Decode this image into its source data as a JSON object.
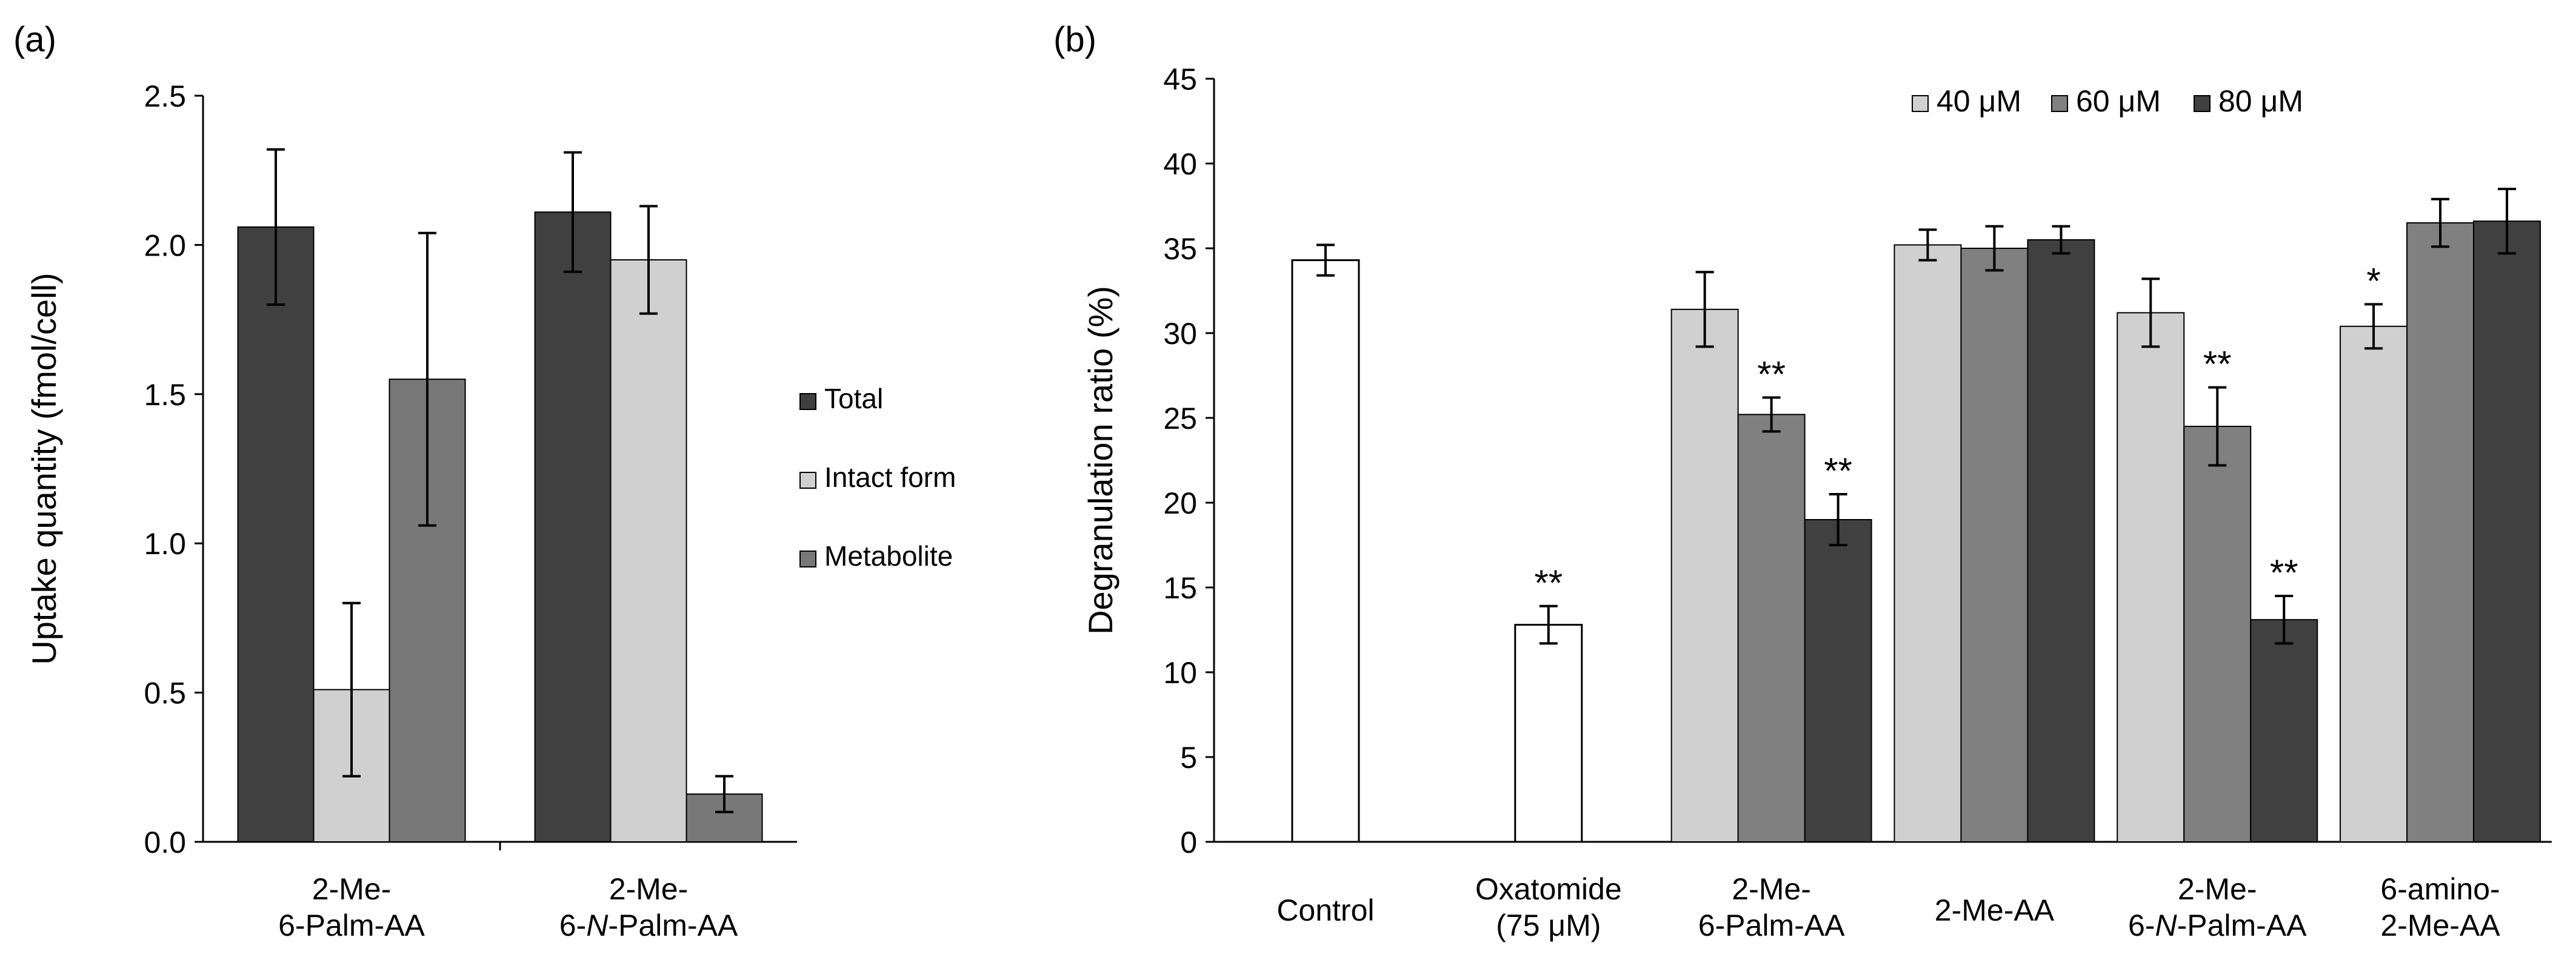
{
  "panel_labels": {
    "a": "(a)",
    "b": "(b)"
  },
  "chart_data": [
    {
      "type": "bar",
      "panel": "(a)",
      "categories": [
        [
          "2-Me-",
          "6-Palm-AA"
        ],
        [
          "2-Me-",
          "6-N-Palm-AA"
        ]
      ],
      "ylabel": "Uptake quantity (fmol/cell)",
      "ylim": [
        0,
        2.5
      ],
      "yticks": [
        "0.0",
        "0.5",
        "1.0",
        "1.5",
        "2.0",
        "2.5"
      ],
      "legend_position": "right",
      "series": [
        {
          "name": "Total",
          "color": "#404040",
          "values": [
            2.06,
            2.11
          ],
          "errors": [
            0.26,
            0.2
          ]
        },
        {
          "name": "Intact form",
          "color": "#d0d0d0",
          "values": [
            0.51,
            1.95
          ],
          "errors": [
            0.29,
            0.18
          ]
        },
        {
          "name": "Metabolite",
          "color": "#787878",
          "values": [
            1.55,
            0.16
          ],
          "errors": [
            0.49,
            0.06
          ]
        }
      ]
    },
    {
      "type": "bar",
      "panel": "(b)",
      "categories": [
        [
          "Control"
        ],
        [
          "Oxatomide",
          "(75 μM)"
        ],
        [
          "2-Me-",
          "6-Palm-AA"
        ],
        [
          "2-Me-AA"
        ],
        [
          "2-Me-",
          "6-N-Palm-AA"
        ],
        [
          "6-amino-",
          "2-Me-AA"
        ]
      ],
      "ylabel": "Degranulation ratio (%)",
      "ylim": [
        0,
        45
      ],
      "yticks": [
        "0",
        "5",
        "10",
        "15",
        "20",
        "25",
        "30",
        "35",
        "40",
        "45"
      ],
      "legend_position": "top-right",
      "single_bars": [
        {
          "category": 0,
          "color": "#ffffff",
          "value": 34.3,
          "error": 0.9,
          "mark": ""
        },
        {
          "category": 1,
          "color": "#ffffff",
          "value": 12.8,
          "error": 1.1,
          "mark": "**"
        }
      ],
      "series": [
        {
          "name": "40 μM",
          "color": "#d0d0d0",
          "values": [
            null,
            null,
            31.4,
            35.2,
            31.2,
            30.4
          ],
          "errors": [
            null,
            null,
            2.2,
            0.9,
            2.0,
            1.3
          ],
          "marks": [
            "",
            "",
            "",
            "",
            "",
            "*"
          ]
        },
        {
          "name": "60 μM",
          "color": "#808080",
          "values": [
            null,
            null,
            25.2,
            35.0,
            24.5,
            36.5
          ],
          "errors": [
            null,
            null,
            1.0,
            1.3,
            2.3,
            1.4
          ],
          "marks": [
            "",
            "",
            "**",
            "",
            "**",
            ""
          ]
        },
        {
          "name": "80 μM",
          "color": "#404040",
          "values": [
            null,
            null,
            19.0,
            35.5,
            13.1,
            36.6
          ],
          "errors": [
            null,
            null,
            1.5,
            0.8,
            1.4,
            1.9
          ],
          "marks": [
            "",
            "",
            "**",
            "",
            "**",
            ""
          ]
        }
      ]
    }
  ]
}
